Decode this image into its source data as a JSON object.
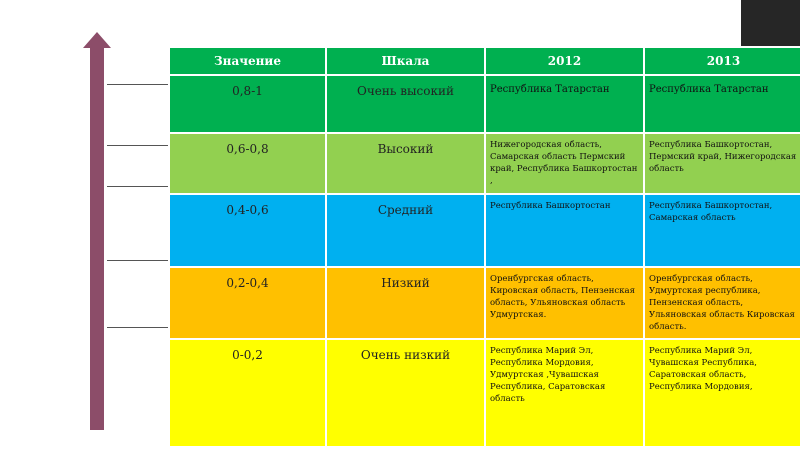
{
  "header": {
    "value": "Значение",
    "scale": "Шкала",
    "y2012": "2012",
    "y2013": "2013"
  },
  "rows": [
    {
      "value": "0,8-1",
      "scale": "Очень высокий",
      "y2012": "Республика Татарстан",
      "y2013": "Республика Татарстан",
      "color": "#00b050"
    },
    {
      "value": "0,6-0,8",
      "scale": "Высокий",
      "y2012": "Нижегородская область, Самарская область Пермский край, Республика Башкортостан ,",
      "y2013": "Республика Башкортостан, Пермский край, Нижегородская область",
      "color": "#92d050"
    },
    {
      "value": "0,4-0,6",
      "scale": "Средний",
      "y2012": "Республика Башкортостан",
      "y2013": "Республика Башкортостан, Самарская область",
      "color": "#00b0f0"
    },
    {
      "value": "0,2-0,4",
      "scale": "Низкий",
      "y2012": "Оренбургская область, Кировская область, Пензенская область, Ульяновская область Удмуртская.",
      "y2013": "Оренбургская область, Удмуртская республика, Пензенская область, Ульяновская область Кировская область.",
      "color": "#ffc000"
    },
    {
      "value": "0-0,2",
      "scale": "Очень низкий",
      "y2012": "Республика Марий Эл, Республика Мордовия, Удмуртская ,Чувашская Республика, Саратовская область",
      "y2013": "Республика Марий Эл, Чувашская Республика, Саратовская область, Республика Мордовия,",
      "color": "#ffff00"
    }
  ]
}
